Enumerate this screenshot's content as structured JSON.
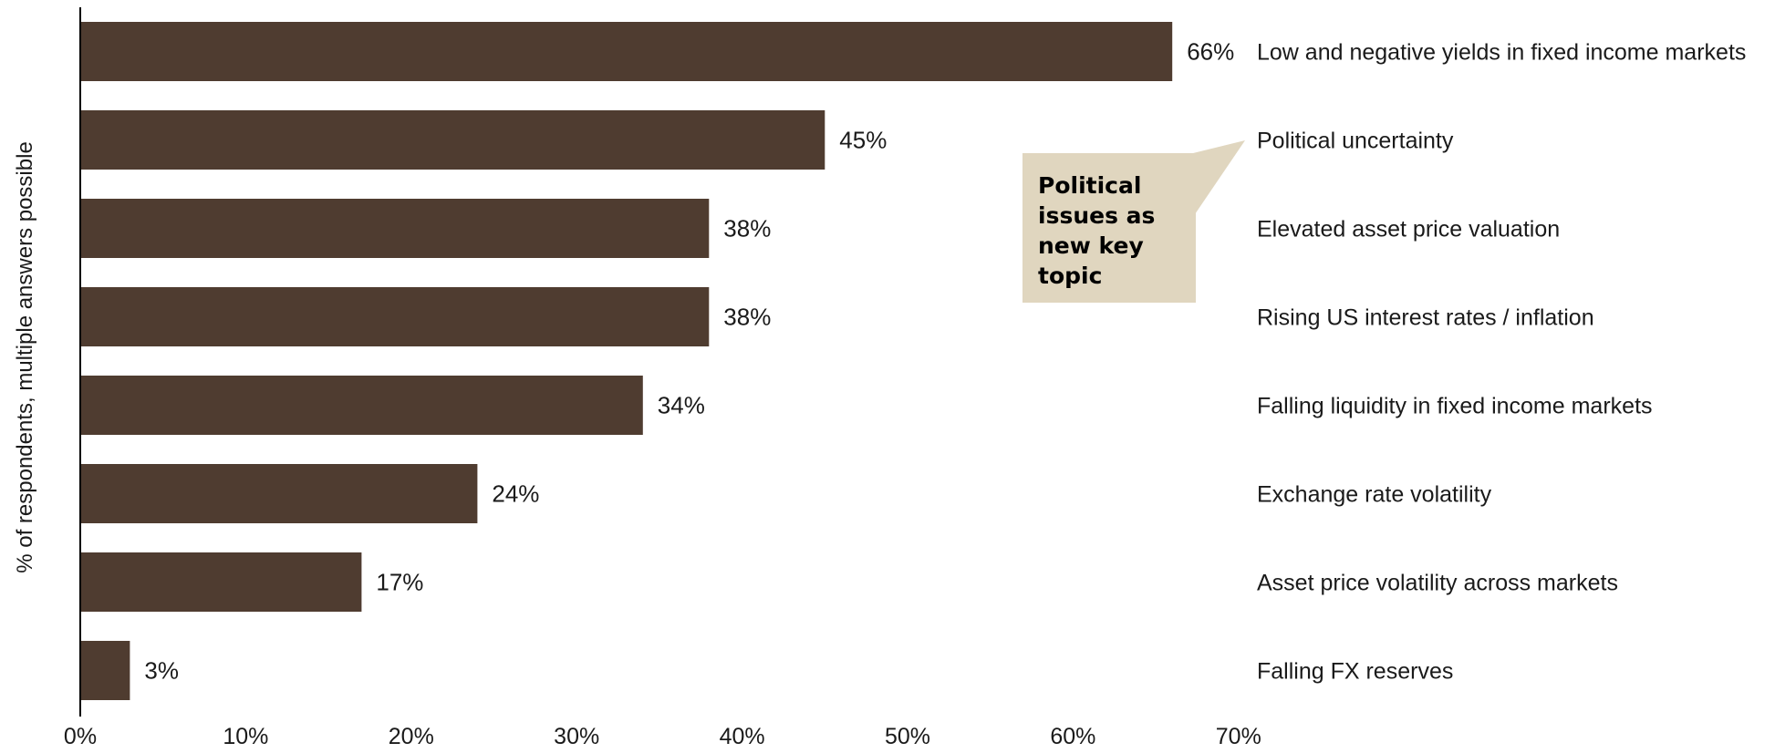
{
  "chart_data": {
    "type": "bar",
    "orientation": "horizontal",
    "categories": [
      "Low and negative yields in fixed income markets",
      "Political uncertainty",
      "Elevated asset price valuation",
      "Rising US interest rates / inflation",
      "Falling liquidity in fixed income markets",
      "Exchange rate volatility",
      "Asset price volatility across markets",
      "Falling FX reserves"
    ],
    "values": [
      66,
      45,
      38,
      38,
      34,
      24,
      17,
      3
    ],
    "value_labels": [
      "66%",
      "45%",
      "38%",
      "38%",
      "34%",
      "24%",
      "17%",
      "3%"
    ],
    "title": "",
    "xlabel": "",
    "ylabel": "% of respondents, multiple answers possible",
    "xlim": [
      0,
      70
    ],
    "xticks": [
      0,
      10,
      20,
      30,
      40,
      50,
      60,
      70
    ],
    "xtick_labels": [
      "0%",
      "10%",
      "20%",
      "30%",
      "40%",
      "50%",
      "60%",
      "70%"
    ],
    "grid": false,
    "legend": "none",
    "bar_color": "#4f3c30",
    "annotation": {
      "lines": [
        "Political",
        "issues as",
        "new key",
        "topic"
      ],
      "points_to": "Political uncertainty",
      "fill": "#e0d6bf"
    }
  }
}
